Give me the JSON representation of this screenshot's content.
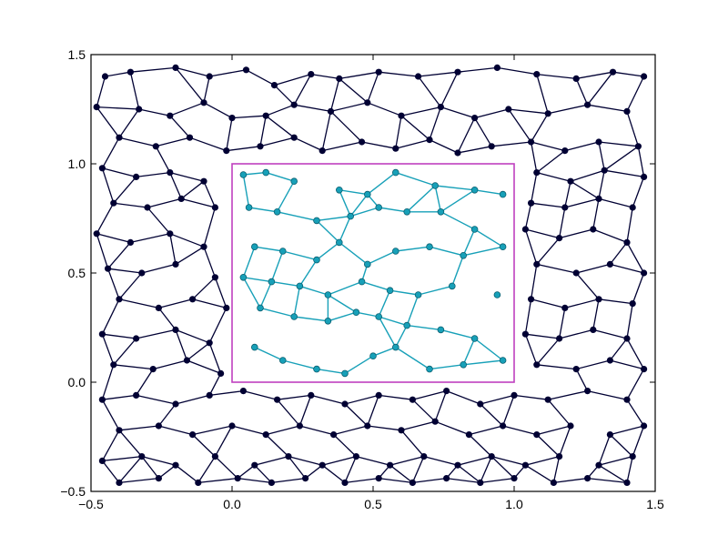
{
  "chart_data": {
    "type": "scatter",
    "description_free": true,
    "xlim": [
      -0.5,
      1.5
    ],
    "ylim": [
      -0.5,
      1.5
    ],
    "x_ticks": [
      "−0.5",
      "0.0",
      "0.5",
      "1.0",
      "1.5"
    ],
    "y_ticks": [
      "−0.5",
      "0.0",
      "0.5",
      "1.0",
      "1.5"
    ],
    "x_tick_values": [
      -0.5,
      0.0,
      0.5,
      1.0,
      1.5
    ],
    "y_tick_values": [
      -0.5,
      0.0,
      0.5,
      1.0,
      1.5
    ],
    "grid": false,
    "colors": {
      "outer": "#000033",
      "inner": "#17a0b8",
      "box": "#bf40bf",
      "frame": "#000000"
    },
    "box": {
      "x0": 0.0,
      "y0": 0.0,
      "x1": 1.0,
      "y1": 1.0
    },
    "outer_vertices": [
      [
        -0.45,
        1.4
      ],
      [
        -0.36,
        1.42
      ],
      [
        -0.2,
        1.44
      ],
      [
        -0.08,
        1.4
      ],
      [
        0.05,
        1.43
      ],
      [
        0.15,
        1.36
      ],
      [
        0.28,
        1.41
      ],
      [
        0.38,
        1.39
      ],
      [
        0.52,
        1.42
      ],
      [
        0.66,
        1.4
      ],
      [
        0.8,
        1.42
      ],
      [
        0.94,
        1.44
      ],
      [
        1.08,
        1.41
      ],
      [
        1.22,
        1.39
      ],
      [
        1.35,
        1.42
      ],
      [
        1.46,
        1.4
      ],
      [
        -0.48,
        1.26
      ],
      [
        -0.33,
        1.25
      ],
      [
        -0.22,
        1.22
      ],
      [
        -0.1,
        1.28
      ],
      [
        0.0,
        1.21
      ],
      [
        0.12,
        1.22
      ],
      [
        0.22,
        1.27
      ],
      [
        0.35,
        1.24
      ],
      [
        0.48,
        1.28
      ],
      [
        0.6,
        1.22
      ],
      [
        0.74,
        1.26
      ],
      [
        0.86,
        1.21
      ],
      [
        0.98,
        1.25
      ],
      [
        1.12,
        1.23
      ],
      [
        1.26,
        1.27
      ],
      [
        1.4,
        1.24
      ],
      [
        -0.4,
        1.12
      ],
      [
        -0.27,
        1.08
      ],
      [
        -0.15,
        1.12
      ],
      [
        -0.02,
        1.06
      ],
      [
        0.1,
        1.08
      ],
      [
        0.22,
        1.12
      ],
      [
        0.32,
        1.06
      ],
      [
        0.46,
        1.1
      ],
      [
        0.58,
        1.07
      ],
      [
        0.7,
        1.11
      ],
      [
        0.8,
        1.05
      ],
      [
        0.92,
        1.08
      ],
      [
        1.06,
        1.1
      ],
      [
        1.18,
        1.06
      ],
      [
        1.3,
        1.1
      ],
      [
        1.44,
        1.08
      ],
      [
        -0.46,
        0.98
      ],
      [
        -0.34,
        0.94
      ],
      [
        -0.22,
        0.96
      ],
      [
        -0.1,
        0.92
      ],
      [
        1.08,
        0.96
      ],
      [
        1.2,
        0.92
      ],
      [
        1.32,
        0.97
      ],
      [
        1.46,
        0.94
      ],
      [
        -0.42,
        0.82
      ],
      [
        -0.3,
        0.8
      ],
      [
        -0.18,
        0.84
      ],
      [
        -0.06,
        0.8
      ],
      [
        1.06,
        0.82
      ],
      [
        1.18,
        0.8
      ],
      [
        1.3,
        0.84
      ],
      [
        1.42,
        0.8
      ],
      [
        -0.48,
        0.68
      ],
      [
        -0.36,
        0.64
      ],
      [
        -0.22,
        0.68
      ],
      [
        -0.1,
        0.62
      ],
      [
        1.04,
        0.7
      ],
      [
        1.16,
        0.66
      ],
      [
        1.28,
        0.7
      ],
      [
        1.4,
        0.64
      ],
      [
        -0.44,
        0.52
      ],
      [
        -0.32,
        0.5
      ],
      [
        -0.2,
        0.54
      ],
      [
        -0.06,
        0.48
      ],
      [
        1.08,
        0.54
      ],
      [
        1.22,
        0.5
      ],
      [
        1.34,
        0.54
      ],
      [
        1.46,
        0.5
      ],
      [
        -0.4,
        0.38
      ],
      [
        -0.26,
        0.34
      ],
      [
        -0.14,
        0.38
      ],
      [
        -0.02,
        0.34
      ],
      [
        1.06,
        0.38
      ],
      [
        1.18,
        0.34
      ],
      [
        1.3,
        0.38
      ],
      [
        1.42,
        0.36
      ],
      [
        -0.46,
        0.22
      ],
      [
        -0.34,
        0.2
      ],
      [
        -0.2,
        0.24
      ],
      [
        -0.08,
        0.18
      ],
      [
        1.04,
        0.22
      ],
      [
        1.16,
        0.2
      ],
      [
        1.28,
        0.24
      ],
      [
        1.4,
        0.2
      ],
      [
        -0.42,
        0.08
      ],
      [
        -0.28,
        0.06
      ],
      [
        -0.16,
        0.1
      ],
      [
        -0.04,
        0.04
      ],
      [
        1.08,
        0.08
      ],
      [
        1.22,
        0.06
      ],
      [
        1.34,
        0.1
      ],
      [
        1.46,
        0.06
      ],
      [
        -0.46,
        -0.08
      ],
      [
        -0.34,
        -0.06
      ],
      [
        -0.2,
        -0.1
      ],
      [
        -0.08,
        -0.06
      ],
      [
        0.04,
        -0.04
      ],
      [
        0.16,
        -0.08
      ],
      [
        0.28,
        -0.06
      ],
      [
        0.4,
        -0.1
      ],
      [
        0.52,
        -0.06
      ],
      [
        0.64,
        -0.08
      ],
      [
        0.76,
        -0.04
      ],
      [
        0.88,
        -0.1
      ],
      [
        1.0,
        -0.06
      ],
      [
        1.12,
        -0.08
      ],
      [
        1.26,
        -0.04
      ],
      [
        1.4,
        -0.08
      ],
      [
        -0.4,
        -0.22
      ],
      [
        -0.26,
        -0.2
      ],
      [
        -0.14,
        -0.24
      ],
      [
        0.0,
        -0.2
      ],
      [
        0.12,
        -0.24
      ],
      [
        0.24,
        -0.2
      ],
      [
        0.36,
        -0.24
      ],
      [
        0.48,
        -0.2
      ],
      [
        0.6,
        -0.22
      ],
      [
        0.72,
        -0.18
      ],
      [
        0.84,
        -0.24
      ],
      [
        0.96,
        -0.2
      ],
      [
        1.08,
        -0.24
      ],
      [
        1.2,
        -0.2
      ],
      [
        1.34,
        -0.24
      ],
      [
        1.46,
        -0.2
      ],
      [
        -0.46,
        -0.36
      ],
      [
        -0.32,
        -0.34
      ],
      [
        -0.2,
        -0.38
      ],
      [
        -0.06,
        -0.34
      ],
      [
        0.08,
        -0.38
      ],
      [
        0.2,
        -0.34
      ],
      [
        0.32,
        -0.38
      ],
      [
        0.44,
        -0.34
      ],
      [
        0.56,
        -0.38
      ],
      [
        0.68,
        -0.34
      ],
      [
        0.8,
        -0.38
      ],
      [
        0.92,
        -0.34
      ],
      [
        1.04,
        -0.38
      ],
      [
        1.16,
        -0.34
      ],
      [
        1.3,
        -0.38
      ],
      [
        1.42,
        -0.34
      ],
      [
        -0.4,
        -0.46
      ],
      [
        -0.26,
        -0.44
      ],
      [
        -0.12,
        -0.46
      ],
      [
        0.02,
        -0.44
      ],
      [
        0.14,
        -0.46
      ],
      [
        0.26,
        -0.44
      ],
      [
        0.4,
        -0.46
      ],
      [
        0.52,
        -0.44
      ],
      [
        0.64,
        -0.46
      ],
      [
        0.76,
        -0.44
      ],
      [
        0.88,
        -0.46
      ],
      [
        1.0,
        -0.44
      ],
      [
        1.14,
        -0.46
      ],
      [
        1.26,
        -0.44
      ],
      [
        1.4,
        -0.46
      ]
    ],
    "inner_vertices": [
      [
        0.04,
        0.95
      ],
      [
        0.12,
        0.96
      ],
      [
        0.22,
        0.92
      ],
      [
        0.38,
        0.88
      ],
      [
        0.48,
        0.86
      ],
      [
        0.58,
        0.96
      ],
      [
        0.72,
        0.9
      ],
      [
        0.86,
        0.88
      ],
      [
        0.96,
        0.86
      ],
      [
        0.06,
        0.8
      ],
      [
        0.16,
        0.78
      ],
      [
        0.3,
        0.74
      ],
      [
        0.42,
        0.76
      ],
      [
        0.52,
        0.8
      ],
      [
        0.62,
        0.78
      ],
      [
        0.74,
        0.78
      ],
      [
        0.86,
        0.7
      ],
      [
        0.08,
        0.62
      ],
      [
        0.18,
        0.6
      ],
      [
        0.3,
        0.56
      ],
      [
        0.38,
        0.64
      ],
      [
        0.48,
        0.54
      ],
      [
        0.58,
        0.6
      ],
      [
        0.7,
        0.62
      ],
      [
        0.82,
        0.58
      ],
      [
        0.96,
        0.62
      ],
      [
        0.04,
        0.48
      ],
      [
        0.14,
        0.46
      ],
      [
        0.24,
        0.44
      ],
      [
        0.34,
        0.4
      ],
      [
        0.46,
        0.46
      ],
      [
        0.56,
        0.42
      ],
      [
        0.66,
        0.4
      ],
      [
        0.78,
        0.44
      ],
      [
        0.94,
        0.4
      ],
      [
        0.1,
        0.34
      ],
      [
        0.22,
        0.3
      ],
      [
        0.34,
        0.28
      ],
      [
        0.44,
        0.32
      ],
      [
        0.52,
        0.3
      ],
      [
        0.62,
        0.26
      ],
      [
        0.74,
        0.24
      ],
      [
        0.86,
        0.2
      ],
      [
        0.08,
        0.16
      ],
      [
        0.18,
        0.1
      ],
      [
        0.3,
        0.06
      ],
      [
        0.4,
        0.04
      ],
      [
        0.5,
        0.12
      ],
      [
        0.58,
        0.16
      ],
      [
        0.7,
        0.06
      ],
      [
        0.82,
        0.08
      ],
      [
        0.96,
        0.1
      ]
    ],
    "outer_edges": [],
    "inner_edges": []
  }
}
